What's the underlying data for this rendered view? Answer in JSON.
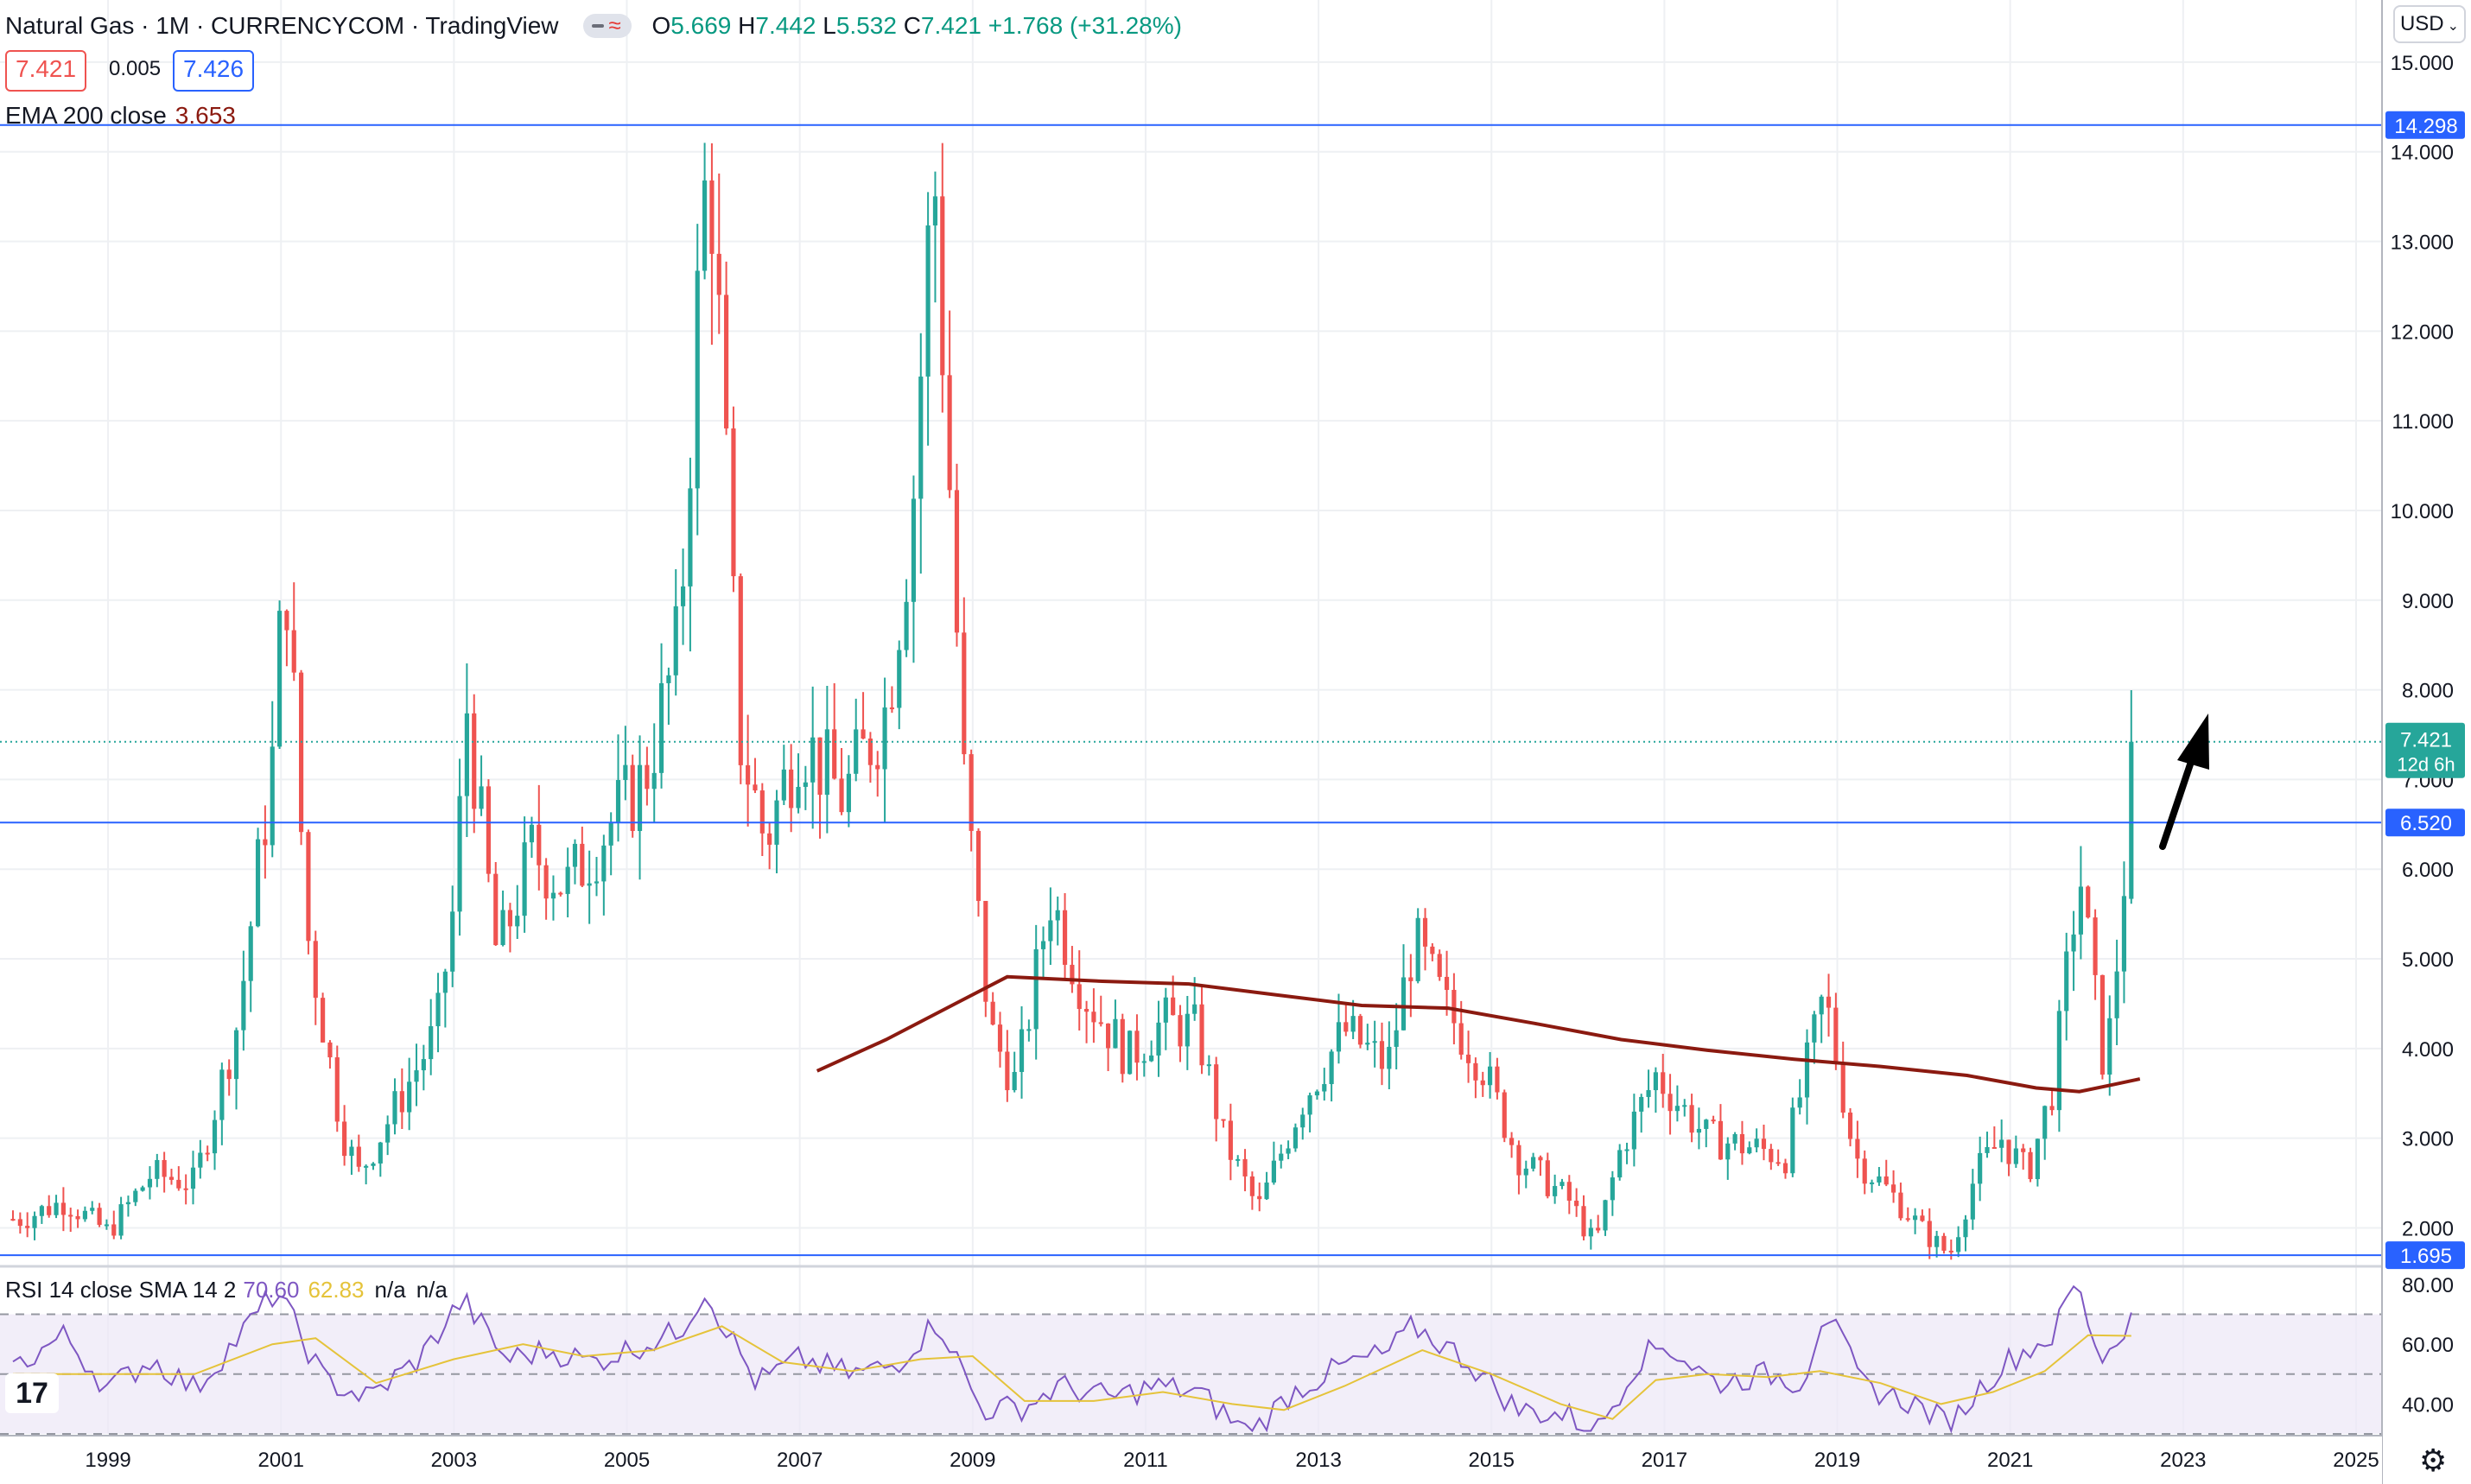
{
  "header": {
    "symbol": "Natural Gas · 1M · CURRENCYCOM · TradingView",
    "ohlc": [
      {
        "k": "O",
        "v": "5.669"
      },
      {
        "k": "H",
        "v": "7.442"
      },
      {
        "k": "L",
        "v": "5.532"
      },
      {
        "k": "C",
        "v": "7.421"
      }
    ],
    "change": "+1.768 (+31.28%)",
    "bid": "7.421",
    "spread": "0.005",
    "ask": "7.426"
  },
  "ema_legend": {
    "label": "EMA 200 close",
    "value": "3.653"
  },
  "rsi_legend": {
    "label": "RSI 14 close SMA 14 2",
    "rsi": "70.60",
    "sma": "62.83",
    "na1": "n/a",
    "na2": "n/a"
  },
  "currency_button": "USD",
  "tv_logo": "17",
  "colors": {
    "up": "#26a69a",
    "down": "#ef5350",
    "ema": "#8b1a10",
    "hline": "#2962ff",
    "rsi": "#7e57c2",
    "rsi_sma": "#e5c33a"
  },
  "chart_data": {
    "type": "candlestick",
    "y_axis": {
      "ticks": [
        "15.000",
        "14.000",
        "13.000",
        "12.000",
        "11.000",
        "10.000",
        "9.000",
        "8.000",
        "7.000",
        "6.000",
        "5.000",
        "4.000",
        "3.000",
        "2.000"
      ],
      "range": [
        1.6,
        15.5
      ]
    },
    "x_axis": {
      "ticks": [
        "1999",
        "2001",
        "2003",
        "2005",
        "2007",
        "2009",
        "2011",
        "2013",
        "2015",
        "2017",
        "2019",
        "2021",
        "2023",
        "2025"
      ]
    },
    "horizontal_lines": [
      "14.298",
      "6.520",
      "1.695"
    ],
    "last_price": {
      "value": "7.421",
      "countdown": "12d 6h"
    },
    "price_path": [
      [
        1998.0,
        2.1
      ],
      [
        1998.5,
        2.3
      ],
      [
        1999.0,
        1.95
      ],
      [
        1999.5,
        2.6
      ],
      [
        2000.0,
        2.5
      ],
      [
        2000.5,
        4.3
      ],
      [
        2000.9,
        7.2
      ],
      [
        2001.05,
        9.5
      ],
      [
        2001.3,
        5.3
      ],
      [
        2001.7,
        3.1
      ],
      [
        2001.9,
        2.6
      ],
      [
        2002.3,
        3.3
      ],
      [
        2002.8,
        4.2
      ],
      [
        2003.0,
        5.6
      ],
      [
        2003.15,
        7.8
      ],
      [
        2003.5,
        5.0
      ],
      [
        2003.9,
        6.2
      ],
      [
        2004.3,
        5.8
      ],
      [
        2004.8,
        6.5
      ],
      [
        2005.2,
        7.0
      ],
      [
        2005.6,
        8.5
      ],
      [
        2005.8,
        12.0
      ],
      [
        2005.95,
        14.2
      ],
      [
        2006.3,
        7.5
      ],
      [
        2006.6,
        6.3
      ],
      [
        2007.0,
        7.5
      ],
      [
        2007.5,
        6.8
      ],
      [
        2008.0,
        7.8
      ],
      [
        2008.3,
        10.0
      ],
      [
        2008.55,
        13.9
      ],
      [
        2008.9,
        7.0
      ],
      [
        2009.2,
        4.2
      ],
      [
        2009.5,
        3.6
      ],
      [
        2009.9,
        5.7
      ],
      [
        2010.3,
        4.6
      ],
      [
        2010.8,
        3.9
      ],
      [
        2011.2,
        4.3
      ],
      [
        2011.6,
        4.2
      ],
      [
        2011.9,
        3.0
      ],
      [
        2012.3,
        2.2
      ],
      [
        2012.8,
        3.4
      ],
      [
        2013.3,
        4.2
      ],
      [
        2013.8,
        3.8
      ],
      [
        2014.1,
        5.2
      ],
      [
        2014.5,
        4.4
      ],
      [
        2014.9,
        3.8
      ],
      [
        2015.3,
        2.8
      ],
      [
        2015.9,
        2.3
      ],
      [
        2016.2,
        1.8
      ],
      [
        2016.5,
        2.9
      ],
      [
        2016.9,
        3.7
      ],
      [
        2017.5,
        3.0
      ],
      [
        2018.0,
        2.9
      ],
      [
        2018.4,
        2.8
      ],
      [
        2018.85,
        4.6
      ],
      [
        2019.2,
        2.8
      ],
      [
        2019.7,
        2.3
      ],
      [
        2020.0,
        1.95
      ],
      [
        2020.3,
        1.7
      ],
      [
        2020.6,
        2.6
      ],
      [
        2020.9,
        3.0
      ],
      [
        2021.2,
        2.6
      ],
      [
        2021.5,
        3.6
      ],
      [
        2021.8,
        6.0
      ],
      [
        2022.0,
        4.4
      ],
      [
        2022.1,
        3.7
      ],
      [
        2022.3,
        5.6
      ],
      [
        2022.4,
        7.42
      ]
    ],
    "ema_200": [
      [
        2007.2,
        3.75
      ],
      [
        2008.0,
        4.1
      ],
      [
        2008.8,
        4.5
      ],
      [
        2009.4,
        4.8
      ],
      [
        2010.5,
        4.75
      ],
      [
        2011.5,
        4.72
      ],
      [
        2012.5,
        4.6
      ],
      [
        2013.5,
        4.48
      ],
      [
        2014.5,
        4.45
      ],
      [
        2015.5,
        4.28
      ],
      [
        2016.5,
        4.1
      ],
      [
        2017.5,
        3.98
      ],
      [
        2018.5,
        3.88
      ],
      [
        2019.5,
        3.8
      ],
      [
        2020.5,
        3.7
      ],
      [
        2021.3,
        3.56
      ],
      [
        2021.8,
        3.52
      ],
      [
        2022.2,
        3.6
      ],
      [
        2022.5,
        3.66
      ]
    ],
    "rsi_pane": {
      "ticks": [
        "80.00",
        "60.00",
        "40.00"
      ],
      "range": [
        30,
        82
      ],
      "bands": [
        70,
        50,
        30
      ],
      "rsi": [
        [
          1997.9,
          52
        ],
        [
          1998.5,
          63
        ],
        [
          1999.0,
          45
        ],
        [
          1999.5,
          55
        ],
        [
          2000.0,
          45
        ],
        [
          2000.5,
          62
        ],
        [
          2000.95,
          78
        ],
        [
          2001.5,
          48
        ],
        [
          2002.0,
          42
        ],
        [
          2002.6,
          55
        ],
        [
          2003.1,
          75
        ],
        [
          2003.6,
          55
        ],
        [
          2004.1,
          58
        ],
        [
          2004.6,
          54
        ],
        [
          2005.0,
          58
        ],
        [
          2005.6,
          64
        ],
        [
          2005.9,
          78
        ],
        [
          2006.5,
          47
        ],
        [
          2007.0,
          55
        ],
        [
          2007.6,
          50
        ],
        [
          2008.1,
          53
        ],
        [
          2008.6,
          68
        ],
        [
          2009.1,
          38
        ],
        [
          2009.6,
          39
        ],
        [
          2010.0,
          46
        ],
        [
          2010.6,
          42
        ],
        [
          2011.1,
          46
        ],
        [
          2011.6,
          44
        ],
        [
          2012.2,
          30
        ],
        [
          2012.7,
          44
        ],
        [
          2013.3,
          53
        ],
        [
          2013.8,
          57
        ],
        [
          2014.1,
          66
        ],
        [
          2014.7,
          55
        ],
        [
          2015.3,
          38
        ],
        [
          2015.9,
          36
        ],
        [
          2016.2,
          30
        ],
        [
          2016.7,
          55
        ],
        [
          2017.0,
          60
        ],
        [
          2017.6,
          47
        ],
        [
          2018.2,
          50
        ],
        [
          2018.6,
          47
        ],
        [
          2018.85,
          72
        ],
        [
          2019.3,
          46
        ],
        [
          2019.9,
          40
        ],
        [
          2020.3,
          33
        ],
        [
          2020.7,
          47
        ],
        [
          2021.0,
          55
        ],
        [
          2021.5,
          63
        ],
        [
          2021.75,
          81
        ],
        [
          2022.05,
          55
        ],
        [
          2022.25,
          62
        ],
        [
          2022.4,
          70.6
        ]
      ],
      "sma": [
        [
          1997.9,
          50
        ],
        [
          1999.0,
          50
        ],
        [
          2000.0,
          50
        ],
        [
          2000.9,
          60
        ],
        [
          2001.4,
          62
        ],
        [
          2002.1,
          47
        ],
        [
          2003.0,
          55
        ],
        [
          2003.8,
          60
        ],
        [
          2004.5,
          56
        ],
        [
          2005.3,
          58
        ],
        [
          2006.1,
          66
        ],
        [
          2006.8,
          54
        ],
        [
          2007.6,
          51
        ],
        [
          2008.4,
          55
        ],
        [
          2009.0,
          56
        ],
        [
          2009.6,
          41
        ],
        [
          2010.4,
          41
        ],
        [
          2011.2,
          44
        ],
        [
          2012.0,
          40
        ],
        [
          2012.6,
          38
        ],
        [
          2013.3,
          46
        ],
        [
          2014.2,
          58
        ],
        [
          2015.0,
          50
        ],
        [
          2015.8,
          40
        ],
        [
          2016.4,
          35
        ],
        [
          2016.9,
          48
        ],
        [
          2017.5,
          50
        ],
        [
          2018.2,
          49
        ],
        [
          2018.8,
          51
        ],
        [
          2019.5,
          47
        ],
        [
          2020.2,
          40
        ],
        [
          2020.8,
          44
        ],
        [
          2021.4,
          51
        ],
        [
          2021.9,
          63
        ],
        [
          2022.4,
          62.8
        ]
      ]
    }
  }
}
